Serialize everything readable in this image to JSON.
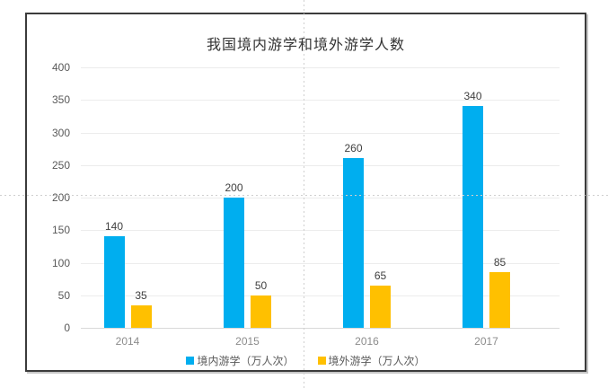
{
  "chart_data": {
    "type": "bar",
    "title": "我国境内游学和境外游学人数",
    "categories": [
      "2014",
      "2015",
      "2016",
      "2017"
    ],
    "series": [
      {
        "name": "境内游学（万人次）",
        "color": "#00AEEF",
        "values": [
          140,
          200,
          260,
          340
        ]
      },
      {
        "name": "境外游学（万人次）",
        "color": "#FFC000",
        "values": [
          35,
          50,
          65,
          85
        ]
      }
    ],
    "ylim": [
      0,
      400
    ],
    "yticks": [
      0,
      50,
      100,
      150,
      200,
      250,
      300,
      350,
      400
    ],
    "grid": true,
    "legend_position": "bottom",
    "data_labels": true
  },
  "colors": {
    "series_domestic": "#00AEEF",
    "series_overseas": "#FFC000",
    "gridline": "#ececec",
    "frame_border": "#3b3b3b",
    "guide": "#cfcfcf",
    "title_text": "#333333",
    "axis_text": "#595959",
    "category_text": "#8c8c8c"
  }
}
